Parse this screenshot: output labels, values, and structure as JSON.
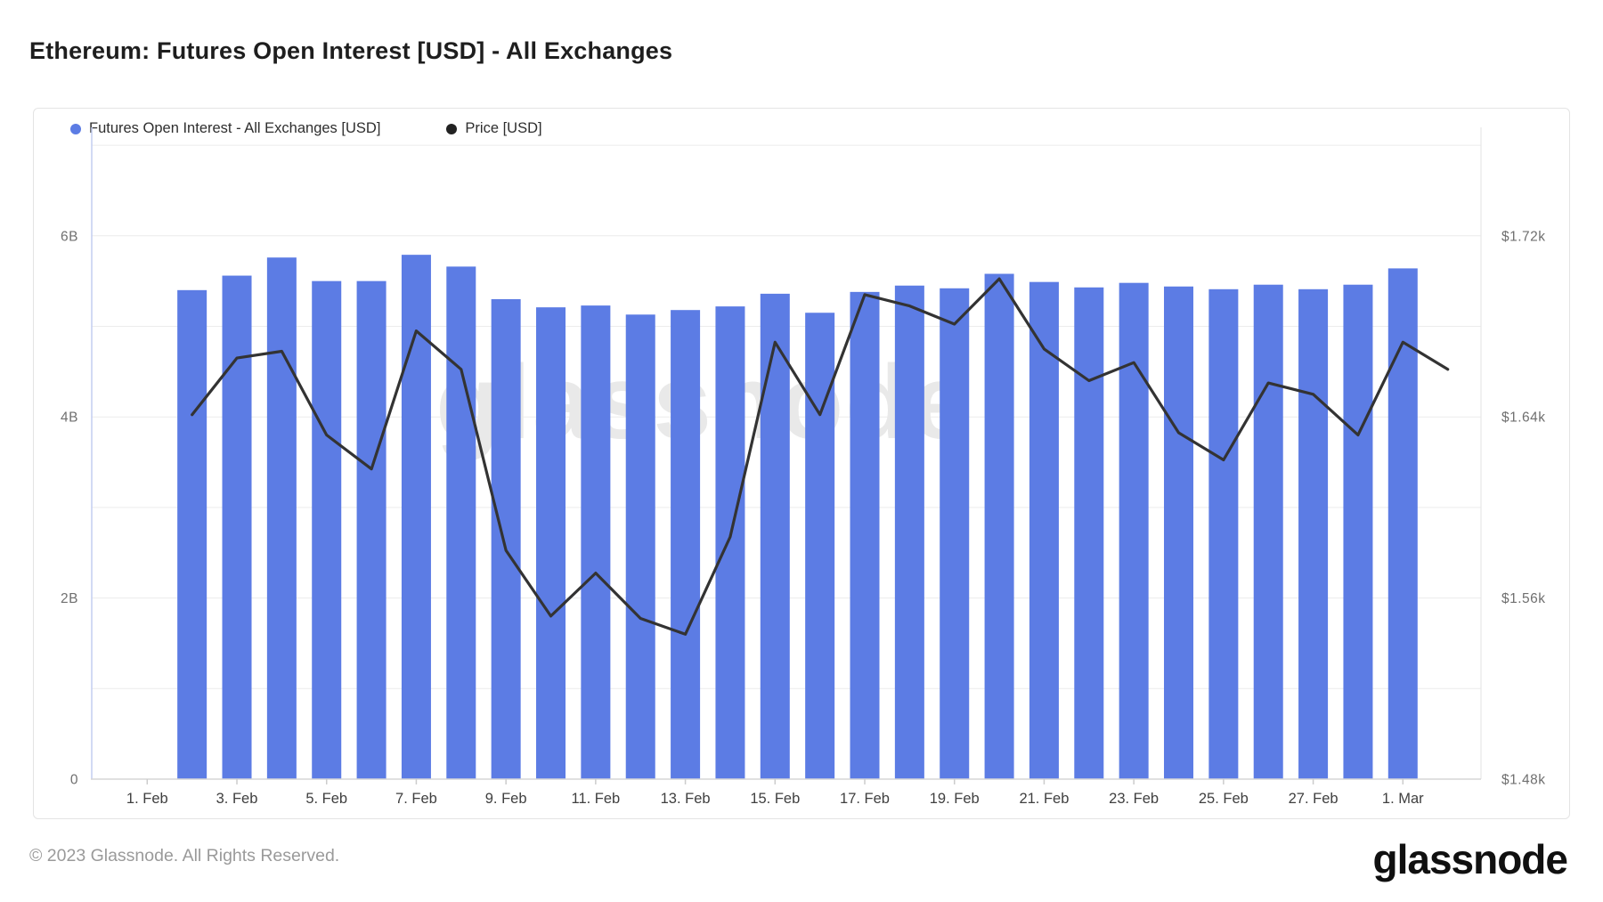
{
  "page_title": "Ethereum: Futures Open Interest [USD] - All Exchanges",
  "legend": [
    {
      "name": "open-interest",
      "label": "Futures Open Interest - All Exchanges [USD]",
      "color": "#5c7ce4"
    },
    {
      "name": "price",
      "label": "Price [USD]",
      "color": "#222222"
    }
  ],
  "watermark": "glassnode",
  "footer": {
    "copyright": "© 2023 Glassnode. All Rights Reserved.",
    "logo_text": "glassnode"
  },
  "colors": {
    "bar": "#5c7ce4",
    "line": "#333333",
    "grid": "#ececec",
    "axis_line": "#d6d6d6",
    "plot_left_border": "#c3cdf1",
    "plot_right_border": "#e3e3e3",
    "tick_mark": "#cccccc",
    "y_label": "#6f6f6f",
    "x_label": "#3f3f3f",
    "watermark": "#e9e9e9"
  },
  "chart_data": {
    "type": "bar",
    "title": "Ethereum: Futures Open Interest [USD] - All Exchanges",
    "legend_position": "top-left",
    "grid": true,
    "y_left": {
      "unit": "B USD",
      "min": 0,
      "max": 7.2,
      "gridline_step": 1,
      "ticks": [
        {
          "label": "0",
          "value": 0
        },
        {
          "label": "2B",
          "value": 2
        },
        {
          "label": "4B",
          "value": 4
        },
        {
          "label": "6B",
          "value": 6
        }
      ]
    },
    "y_right": {
      "unit": "USD",
      "min": 1480,
      "max": 1768,
      "ticks": [
        {
          "label": "$1.48k",
          "value": 1480
        },
        {
          "label": "$1.56k",
          "value": 1560
        },
        {
          "label": "$1.64k",
          "value": 1640
        },
        {
          "label": "$1.72k",
          "value": 1720
        }
      ]
    },
    "x_ticks": [
      {
        "label": "1. Feb",
        "day": 1
      },
      {
        "label": "3. Feb",
        "day": 3
      },
      {
        "label": "5. Feb",
        "day": 5
      },
      {
        "label": "7. Feb",
        "day": 7
      },
      {
        "label": "9. Feb",
        "day": 9
      },
      {
        "label": "11. Feb",
        "day": 11
      },
      {
        "label": "13. Feb",
        "day": 13
      },
      {
        "label": "15. Feb",
        "day": 15
      },
      {
        "label": "17. Feb",
        "day": 17
      },
      {
        "label": "19. Feb",
        "day": 19
      },
      {
        "label": "21. Feb",
        "day": 21
      },
      {
        "label": "23. Feb",
        "day": 23
      },
      {
        "label": "25. Feb",
        "day": 25
      },
      {
        "label": "27. Feb",
        "day": 27
      },
      {
        "label": "1. Mar",
        "day": 29
      }
    ],
    "series": [
      {
        "name": "Futures Open Interest - All Exchanges [USD]",
        "type": "bar",
        "axis": "left",
        "unit": "billion USD",
        "dates": [
          "2023-02-02",
          "2023-02-03",
          "2023-02-04",
          "2023-02-05",
          "2023-02-06",
          "2023-02-07",
          "2023-02-08",
          "2023-02-09",
          "2023-02-10",
          "2023-02-11",
          "2023-02-12",
          "2023-02-13",
          "2023-02-14",
          "2023-02-15",
          "2023-02-16",
          "2023-02-17",
          "2023-02-18",
          "2023-02-19",
          "2023-02-20",
          "2023-02-21",
          "2023-02-22",
          "2023-02-23",
          "2023-02-24",
          "2023-02-25",
          "2023-02-26",
          "2023-02-27",
          "2023-02-28",
          "2023-03-01"
        ],
        "values": [
          5.4,
          5.56,
          5.76,
          5.5,
          5.5,
          5.79,
          5.66,
          5.3,
          5.21,
          5.23,
          5.13,
          5.18,
          5.22,
          5.36,
          5.15,
          5.38,
          5.45,
          5.42,
          5.58,
          5.49,
          5.43,
          5.48,
          5.44,
          5.41,
          5.46,
          5.41,
          5.46,
          5.64
        ]
      },
      {
        "name": "Price [USD]",
        "type": "line",
        "axis": "right",
        "unit": "USD",
        "dates": [
          "2023-02-02",
          "2023-02-03",
          "2023-02-04",
          "2023-02-05",
          "2023-02-06",
          "2023-02-07",
          "2023-02-08",
          "2023-02-09",
          "2023-02-10",
          "2023-02-11",
          "2023-02-12",
          "2023-02-13",
          "2023-02-14",
          "2023-02-15",
          "2023-02-16",
          "2023-02-17",
          "2023-02-18",
          "2023-02-19",
          "2023-02-20",
          "2023-02-21",
          "2023-02-22",
          "2023-02-23",
          "2023-02-24",
          "2023-02-25",
          "2023-02-26",
          "2023-02-27",
          "2023-02-28",
          "2023-03-01",
          "2023-03-02"
        ],
        "values": [
          1641,
          1666,
          1669,
          1632,
          1617,
          1678,
          1661,
          1581,
          1552,
          1571,
          1551,
          1544,
          1587,
          1673,
          1641,
          1694,
          1689,
          1681,
          1701,
          1670,
          1656,
          1664,
          1633,
          1621,
          1655,
          1650,
          1632,
          1673,
          1661
        ]
      }
    ]
  }
}
